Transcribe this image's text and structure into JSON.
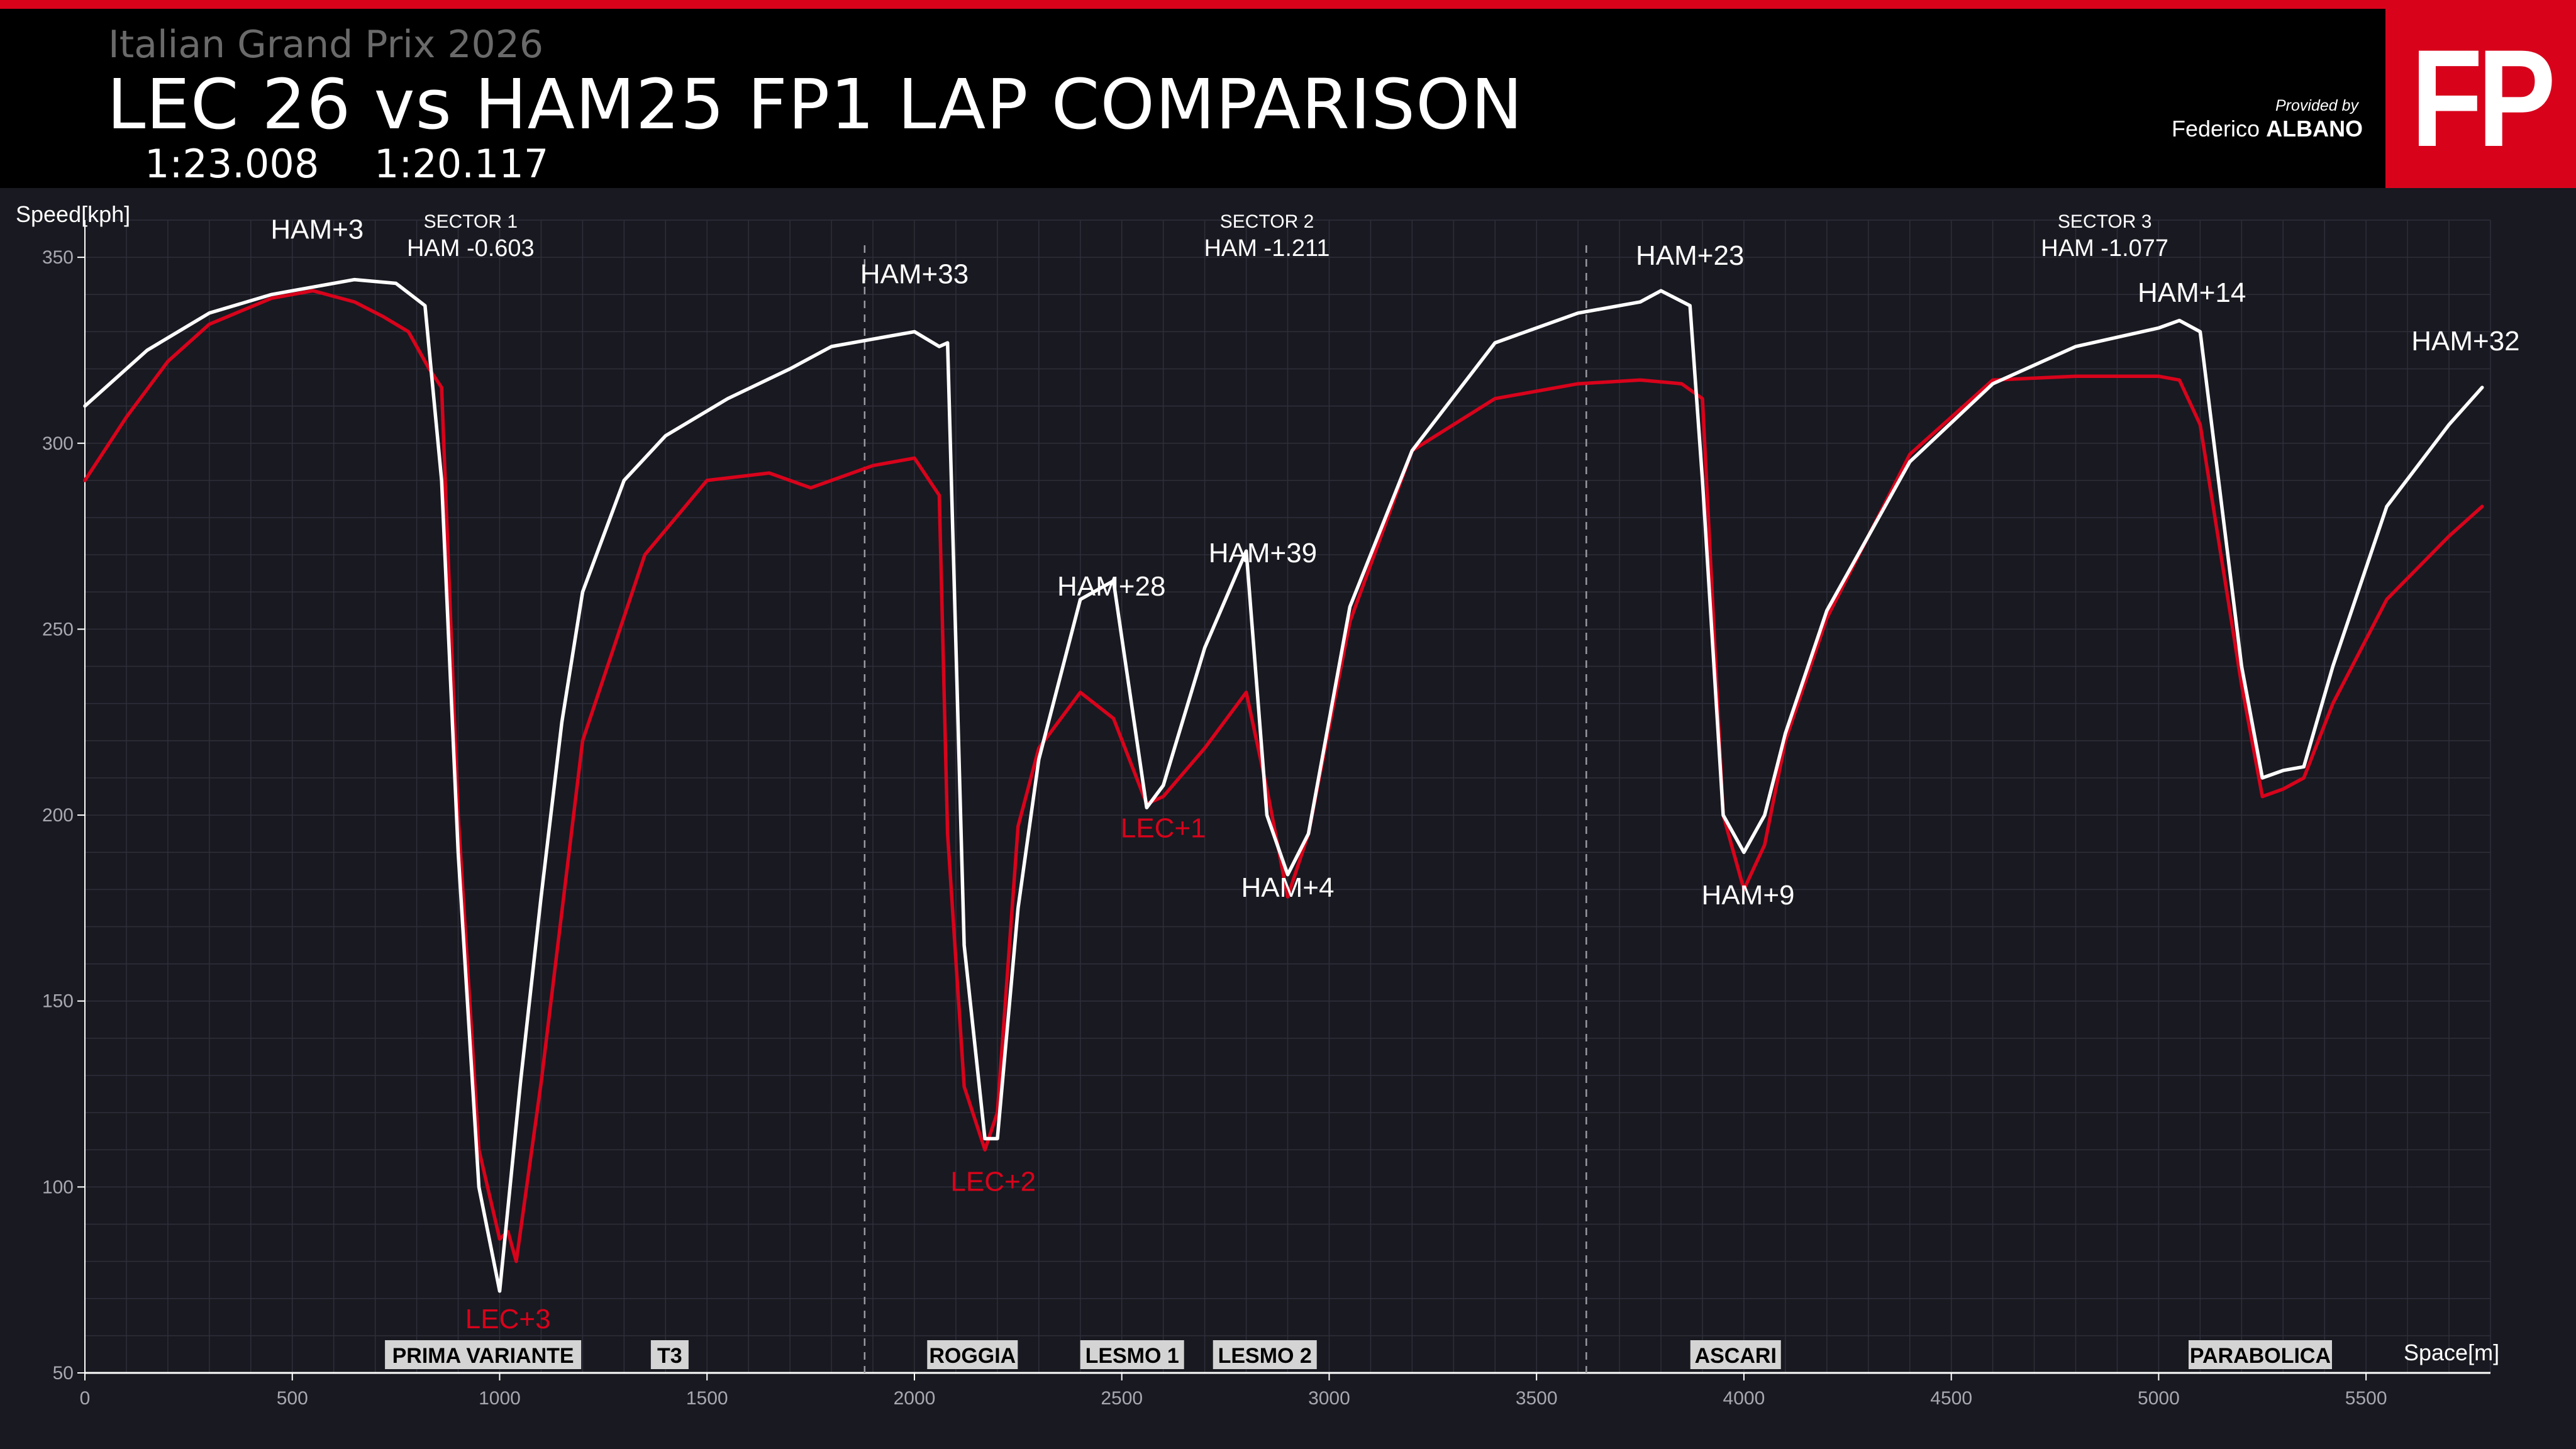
{
  "header": {
    "subtitle": "Italian Grand Prix 2026",
    "title": "LEC 26 vs HAM25 FP1 LAP COMPARISON",
    "lap_times": [
      "1:23.008",
      "1:20.117"
    ],
    "provided_by": "Provided by",
    "author_first": "Federico",
    "author_last": "ALBANO",
    "logo": "FP"
  },
  "colors": {
    "background": "#191921",
    "grid": "#2e2f3a",
    "lec": "#d8031b",
    "ham": "#ffffff",
    "accent": "#d8031b"
  },
  "chart_data": {
    "type": "line",
    "xlabel": "Space[m]",
    "ylabel": "Speed[kph]",
    "xlim": [
      0,
      5800
    ],
    "ylim": [
      50,
      360
    ],
    "x_ticks": [
      0,
      500,
      1000,
      1500,
      2000,
      2500,
      3000,
      3500,
      4000,
      4500,
      5000,
      5500
    ],
    "y_ticks": [
      50,
      100,
      150,
      200,
      250,
      300,
      350
    ],
    "grid": true,
    "sector_lines": [
      1880,
      3620
    ],
    "sectors": [
      {
        "name": "SECTOR 1",
        "delta": "HAM -0.603",
        "x": 930
      },
      {
        "name": "SECTOR 2",
        "delta": "HAM -1.211",
        "x": 2850
      },
      {
        "name": "SECTOR 3",
        "delta": "HAM -1.077",
        "x": 4870
      }
    ],
    "corners": [
      {
        "label": "PRIMA VARIANTE",
        "x": 960
      },
      {
        "label": "T3",
        "x": 1410
      },
      {
        "label": "ROGGIA",
        "x": 2140
      },
      {
        "label": "LESMO 1",
        "x": 2525
      },
      {
        "label": "LESMO 2",
        "x": 2845
      },
      {
        "label": "ASCARI",
        "x": 3980
      },
      {
        "label": "PARABOLICA",
        "x": 5245
      }
    ],
    "annotations": [
      {
        "text": "HAM+3",
        "x": 560,
        "y": 355,
        "series": "HAM"
      },
      {
        "text": "HAM+33",
        "x": 2000,
        "y": 343,
        "series": "HAM"
      },
      {
        "text": "HAM+28",
        "x": 2475,
        "y": 259,
        "series": "HAM"
      },
      {
        "text": "HAM+39",
        "x": 2840,
        "y": 268,
        "series": "HAM"
      },
      {
        "text": "HAM+4",
        "x": 2900,
        "y": 178,
        "series": "HAM"
      },
      {
        "text": "HAM+23",
        "x": 3870,
        "y": 348,
        "series": "HAM"
      },
      {
        "text": "HAM+9",
        "x": 4010,
        "y": 176,
        "series": "HAM"
      },
      {
        "text": "HAM+14",
        "x": 5080,
        "y": 338,
        "series": "HAM"
      },
      {
        "text": "HAM+32",
        "x": 5740,
        "y": 325,
        "series": "HAM"
      },
      {
        "text": "LEC+3",
        "x": 1020,
        "y": 62,
        "series": "LEC"
      },
      {
        "text": "LEC+2",
        "x": 2190,
        "y": 99,
        "series": "LEC"
      },
      {
        "text": "LEC+1",
        "x": 2600,
        "y": 194,
        "series": "LEC"
      }
    ],
    "series": [
      {
        "name": "HAM",
        "color": "#ffffff",
        "x": [
          0,
          150,
          300,
          450,
          500,
          650,
          750,
          820,
          860,
          900,
          950,
          1000,
          1050,
          1100,
          1150,
          1200,
          1300,
          1400,
          1550,
          1700,
          1800,
          1900,
          2000,
          2060,
          2080,
          2120,
          2170,
          2200,
          2250,
          2300,
          2400,
          2480,
          2560,
          2600,
          2700,
          2800,
          2850,
          2900,
          2950,
          3050,
          3200,
          3400,
          3600,
          3750,
          3800,
          3870,
          3900,
          3950,
          4000,
          4050,
          4100,
          4200,
          4400,
          4600,
          4800,
          5000,
          5050,
          5100,
          5200,
          5250,
          5300,
          5350,
          5420,
          5550,
          5700,
          5780
        ],
        "y": [
          310,
          325,
          335,
          340,
          341,
          344,
          343,
          337,
          290,
          190,
          100,
          72,
          128,
          178,
          225,
          260,
          290,
          302,
          312,
          320,
          326,
          328,
          330,
          326,
          327,
          165,
          113,
          113,
          175,
          215,
          258,
          263,
          202,
          208,
          245,
          271,
          200,
          184,
          195,
          256,
          298,
          327,
          335,
          338,
          341,
          337,
          290,
          200,
          190,
          200,
          222,
          255,
          295,
          316,
          326,
          331,
          333,
          330,
          240,
          210,
          212,
          213,
          240,
          283,
          305,
          315
        ]
      },
      {
        "name": "LEC",
        "color": "#d8031b",
        "x": [
          0,
          100,
          200,
          300,
          450,
          550,
          650,
          720,
          780,
          830,
          860,
          900,
          950,
          1000,
          1020,
          1040,
          1100,
          1200,
          1350,
          1500,
          1650,
          1750,
          1900,
          2000,
          2060,
          2080,
          2120,
          2170,
          2200,
          2250,
          2300,
          2400,
          2480,
          2560,
          2600,
          2700,
          2800,
          2850,
          2900,
          2950,
          3050,
          3200,
          3400,
          3600,
          3750,
          3850,
          3900,
          3950,
          4000,
          4050,
          4100,
          4200,
          4400,
          4600,
          4800,
          5000,
          5050,
          5100,
          5200,
          5250,
          5300,
          5350,
          5420,
          5550,
          5700,
          5780
        ],
        "y": [
          290,
          307,
          322,
          332,
          339,
          341,
          338,
          334,
          330,
          320,
          315,
          200,
          110,
          86,
          88,
          80,
          128,
          220,
          270,
          290,
          292,
          288,
          294,
          296,
          286,
          195,
          127,
          110,
          120,
          197,
          218,
          233,
          226,
          203,
          205,
          218,
          233,
          207,
          178,
          195,
          252,
          298,
          312,
          316,
          317,
          316,
          312,
          200,
          180,
          192,
          220,
          253,
          297,
          317,
          318,
          318,
          317,
          305,
          235,
          205,
          207,
          210,
          230,
          258,
          275,
          283
        ]
      }
    ]
  }
}
